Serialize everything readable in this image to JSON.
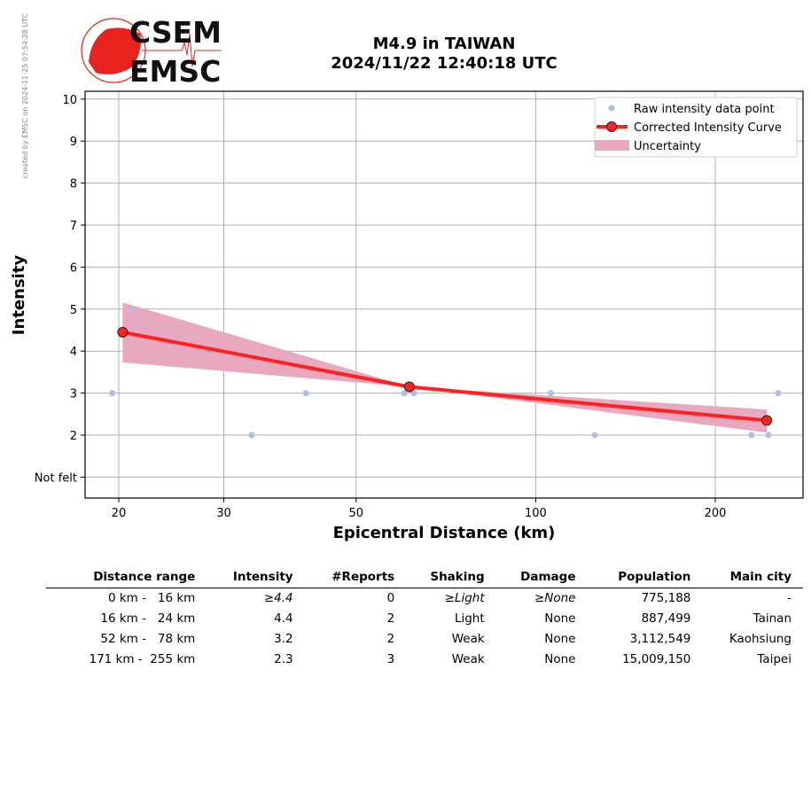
{
  "watermark": "created by EMSC on 2024-11-25 07:54:28 UTC",
  "logo": {
    "top": "CSEM",
    "bottom": "EMSC"
  },
  "chart_data": {
    "type": "line",
    "title": "M4.9 in TAIWAN",
    "subtitle": "2024/11/22 12:40:18 UTC",
    "xlabel": "Epicentral Distance (km)",
    "ylabel": "Intensity",
    "xscale": "log",
    "xlim": [
      17.6,
      280
    ],
    "ylim": [
      0.5,
      10.2
    ],
    "xticks": [
      {
        "v": 20,
        "label": "20"
      },
      {
        "v": 30,
        "label": "30"
      },
      {
        "v": 50,
        "label": "50"
      },
      {
        "v": 100,
        "label": "100"
      },
      {
        "v": 200,
        "label": "200"
      }
    ],
    "yticks": [
      {
        "v": 1,
        "label": "Not felt"
      },
      {
        "v": 2,
        "label": "2"
      },
      {
        "v": 3,
        "label": "3"
      },
      {
        "v": 4,
        "label": "4"
      },
      {
        "v": 5,
        "label": "5"
      },
      {
        "v": 6,
        "label": "6"
      },
      {
        "v": 7,
        "label": "7"
      },
      {
        "v": 8,
        "label": "8"
      },
      {
        "v": 9,
        "label": "9"
      },
      {
        "v": 10,
        "label": "10"
      }
    ],
    "grid": true,
    "legend_position": "top-right",
    "series": [
      {
        "name": "Raw intensity data point",
        "kind": "scatter",
        "color": "#b0bfe8",
        "points": [
          [
            19.5,
            3
          ],
          [
            21,
            5
          ],
          [
            33.4,
            2
          ],
          [
            41.2,
            3
          ],
          [
            60.2,
            3
          ],
          [
            62.5,
            3
          ],
          [
            106,
            3
          ],
          [
            125.6,
            2
          ],
          [
            230,
            2
          ],
          [
            245.6,
            2
          ],
          [
            255,
            3
          ]
        ]
      },
      {
        "name": "Corrected Intensity Curve",
        "kind": "line",
        "color": "#ff2020",
        "points": [
          [
            20.3,
            4.45
          ],
          [
            61.4,
            3.15
          ],
          [
            244,
            2.35
          ]
        ]
      },
      {
        "name": "Uncertainty",
        "kind": "band",
        "color": "#e8a8c0",
        "upper": [
          [
            20.3,
            5.16
          ],
          [
            61.4,
            3.15
          ],
          [
            244,
            2.61
          ]
        ],
        "lower": [
          [
            20.3,
            3.73
          ],
          [
            61.4,
            3.15
          ],
          [
            244,
            2.06
          ]
        ]
      }
    ]
  },
  "table": {
    "headers": [
      "Distance range",
      "Intensity",
      "#Reports",
      "Shaking",
      "Damage",
      "Population",
      "Main city"
    ],
    "rows": [
      {
        "cells": [
          "0 km -   16 km",
          "≥4.4",
          "0",
          "≥Light",
          "≥None",
          "775,188",
          "-"
        ],
        "italic": [
          1,
          3,
          4
        ]
      },
      {
        "cells": [
          "16 km -   24 km",
          "4.4",
          "2",
          "Light",
          "None",
          "887,499",
          "Tainan"
        ],
        "italic": []
      },
      {
        "cells": [
          "52 km -   78 km",
          "3.2",
          "2",
          "Weak",
          "None",
          "3,112,549",
          "Kaohsiung"
        ],
        "italic": []
      },
      {
        "cells": [
          "171 km -  255 km",
          "2.3",
          "3",
          "Weak",
          "None",
          "15,009,150",
          "Taipei"
        ],
        "italic": []
      }
    ]
  }
}
